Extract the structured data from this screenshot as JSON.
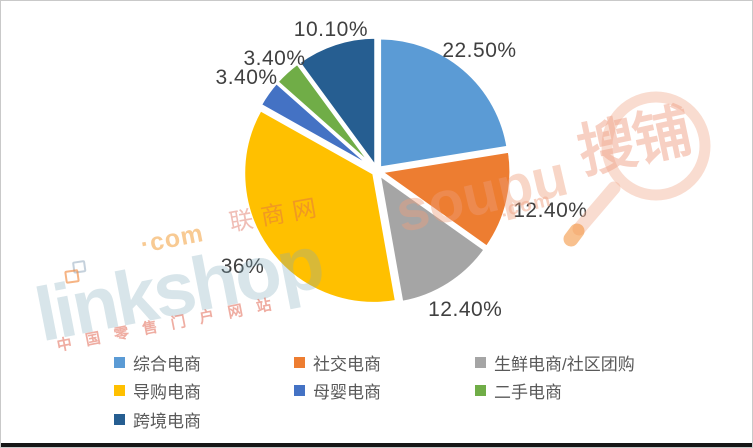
{
  "chart_data": {
    "type": "pie",
    "title": "",
    "legend_position": "bottom",
    "start_angle_deg": 0,
    "direction": "clockwise",
    "series": [
      {
        "name": "综合电商",
        "value": 22.5,
        "label": "22.50%",
        "color": "#5B9BD5"
      },
      {
        "name": "社交电商",
        "value": 12.4,
        "label": "12.40%",
        "color": "#ED7D31"
      },
      {
        "name": "生鲜电商/社区团购",
        "value": 12.4,
        "label": "12.40%",
        "color": "#A5A5A5"
      },
      {
        "name": "导购电商",
        "value": 36.0,
        "label": "36%",
        "color": "#FFC000"
      },
      {
        "name": "母婴电商",
        "value": 3.4,
        "label": "3.40%",
        "color": "#4472C4"
      },
      {
        "name": "二手电商",
        "value": 3.4,
        "label": "3.40%",
        "color": "#70AD47"
      },
      {
        "name": "跨境电商",
        "value": 10.1,
        "label": "10.10%",
        "color": "#265E91"
      }
    ]
  },
  "legend": {
    "columns": [
      [
        0,
        3,
        6
      ],
      [
        1,
        4
      ],
      [
        2,
        5
      ]
    ]
  },
  "watermarks": {
    "linkshop_text": "linkshop",
    "linkshop_com": "·com",
    "linkshop_brand": "联商网",
    "linkshop_slogan": "中国零售门户网站",
    "soupu_text": "soupu",
    "soupu_com": ".com",
    "soupu_brand": "搜铺"
  },
  "colors": {
    "slice_label": "#404040",
    "legend_text": "#595959",
    "pie_border": "#FFFFFF",
    "frame_border": "#C9C9C9",
    "bottom_edge": "#161616"
  }
}
